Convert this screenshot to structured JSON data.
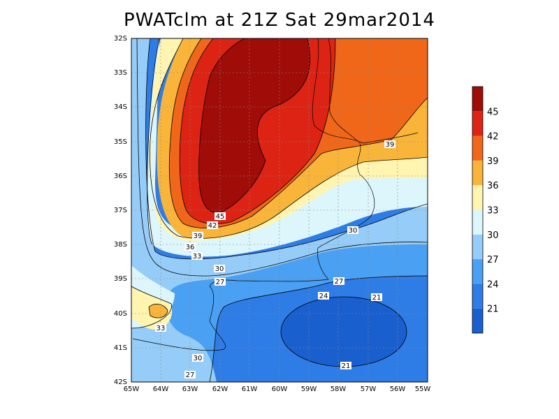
{
  "title": "PWATclm at 21Z Sat 29mar2014",
  "map": {
    "lat_ticks": [
      "32S",
      "33S",
      "34S",
      "35S",
      "36S",
      "37S",
      "38S",
      "39S",
      "40S",
      "41S",
      "42S"
    ],
    "lon_ticks": [
      "65W",
      "64W",
      "63W",
      "62W",
      "61W",
      "60W",
      "59W",
      "58W",
      "57W",
      "56W",
      "55W"
    ]
  },
  "colorbar": {
    "levels": [
      "21",
      "24",
      "27",
      "30",
      "33",
      "36",
      "39",
      "42",
      "45"
    ],
    "colors": [
      "#1a5fce",
      "#2e7de6",
      "#4aa0f2",
      "#96cdf8",
      "#dcf6fb",
      "#fff5b0",
      "#f9b53a",
      "#f0671a",
      "#dd2414",
      "#a00c08"
    ]
  },
  "contour_labels": [
    {
      "text": "45"
    },
    {
      "text": "42"
    },
    {
      "text": "39"
    },
    {
      "text": "36"
    },
    {
      "text": "33"
    },
    {
      "text": "30"
    },
    {
      "text": "27"
    },
    {
      "text": "30"
    },
    {
      "text": "27"
    },
    {
      "text": "24"
    },
    {
      "text": "27"
    },
    {
      "text": "21"
    },
    {
      "text": "21"
    },
    {
      "text": "39"
    },
    {
      "text": "30"
    },
    {
      "text": "33"
    },
    {
      "text": "30"
    },
    {
      "text": "27"
    }
  ]
}
